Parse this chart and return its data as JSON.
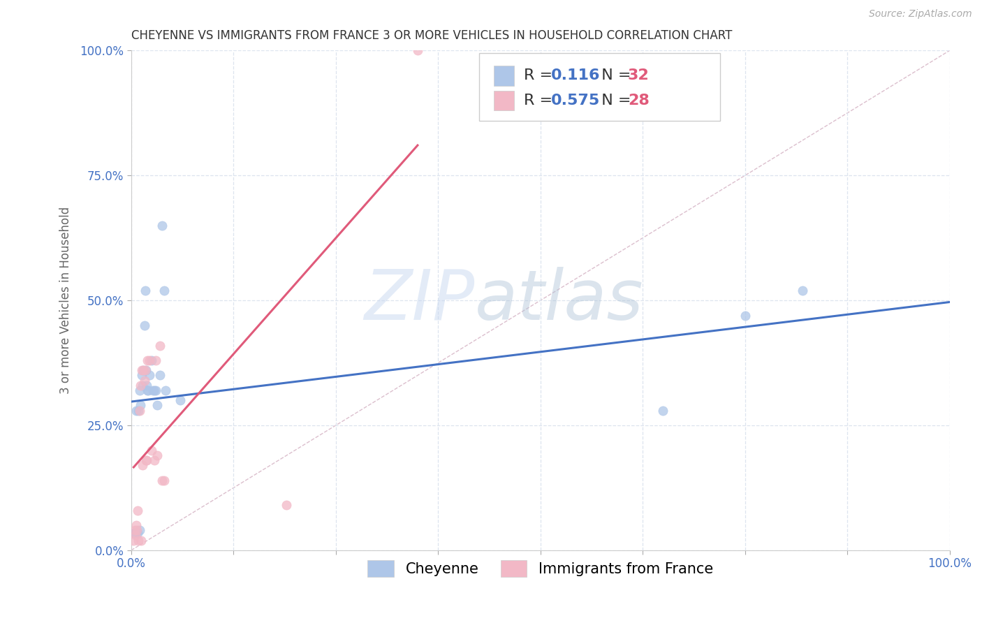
{
  "title": "CHEYENNE VS IMMIGRANTS FROM FRANCE 3 OR MORE VEHICLES IN HOUSEHOLD CORRELATION CHART",
  "source": "Source: ZipAtlas.com",
  "ylabel": "3 or more Vehicles in Household",
  "xlim": [
    0,
    1.0
  ],
  "ylim": [
    0,
    1.0
  ],
  "ytick_labels": [
    "0.0%",
    "25.0%",
    "50.0%",
    "75.0%",
    "100.0%"
  ],
  "ytick_vals": [
    0.0,
    0.25,
    0.5,
    0.75,
    1.0
  ],
  "xtick_vals": [
    0.0,
    0.125,
    0.25,
    0.375,
    0.5,
    0.625,
    0.75,
    0.875,
    1.0
  ],
  "cheyenne_color": "#aec6e8",
  "france_color": "#f2b8c6",
  "cheyenne_R": 0.116,
  "cheyenne_N": 32,
  "france_R": 0.575,
  "france_N": 28,
  "cheyenne_line_color": "#4472c4",
  "france_line_color": "#e05a7a",
  "diagonal_color": "#d8b8c8",
  "watermark_zip": "ZIP",
  "watermark_atlas": "atlas",
  "cheyenne_x": [
    0.003,
    0.004,
    0.005,
    0.006,
    0.008,
    0.009,
    0.01,
    0.01,
    0.011,
    0.013,
    0.014,
    0.015,
    0.016,
    0.017,
    0.018,
    0.019,
    0.02,
    0.021,
    0.022,
    0.025,
    0.027,
    0.028,
    0.03,
    0.032,
    0.035,
    0.038,
    0.04,
    0.042,
    0.06,
    0.65,
    0.75,
    0.82
  ],
  "cheyenne_y": [
    0.035,
    0.035,
    0.035,
    0.28,
    0.035,
    0.28,
    0.04,
    0.32,
    0.29,
    0.35,
    0.33,
    0.36,
    0.45,
    0.52,
    0.36,
    0.33,
    0.32,
    0.32,
    0.35,
    0.38,
    0.32,
    0.32,
    0.32,
    0.29,
    0.35,
    0.65,
    0.52,
    0.32,
    0.3,
    0.28,
    0.47,
    0.52
  ],
  "france_x": [
    0.003,
    0.004,
    0.005,
    0.006,
    0.007,
    0.008,
    0.009,
    0.01,
    0.011,
    0.012,
    0.013,
    0.014,
    0.015,
    0.016,
    0.017,
    0.018,
    0.019,
    0.02,
    0.022,
    0.025,
    0.028,
    0.03,
    0.032,
    0.035,
    0.038,
    0.04,
    0.19,
    0.35
  ],
  "france_y": [
    0.02,
    0.04,
    0.03,
    0.05,
    0.04,
    0.08,
    0.02,
    0.28,
    0.33,
    0.02,
    0.36,
    0.17,
    0.36,
    0.34,
    0.36,
    0.18,
    0.18,
    0.38,
    0.38,
    0.2,
    0.18,
    0.38,
    0.19,
    0.41,
    0.14,
    0.14,
    0.09,
    1.0
  ],
  "marker_size": 90,
  "legend_fontsize": 16,
  "title_fontsize": 12,
  "label_fontsize": 12,
  "tick_fontsize": 12,
  "background_color": "#ffffff",
  "grid_color": "#dde4ef"
}
